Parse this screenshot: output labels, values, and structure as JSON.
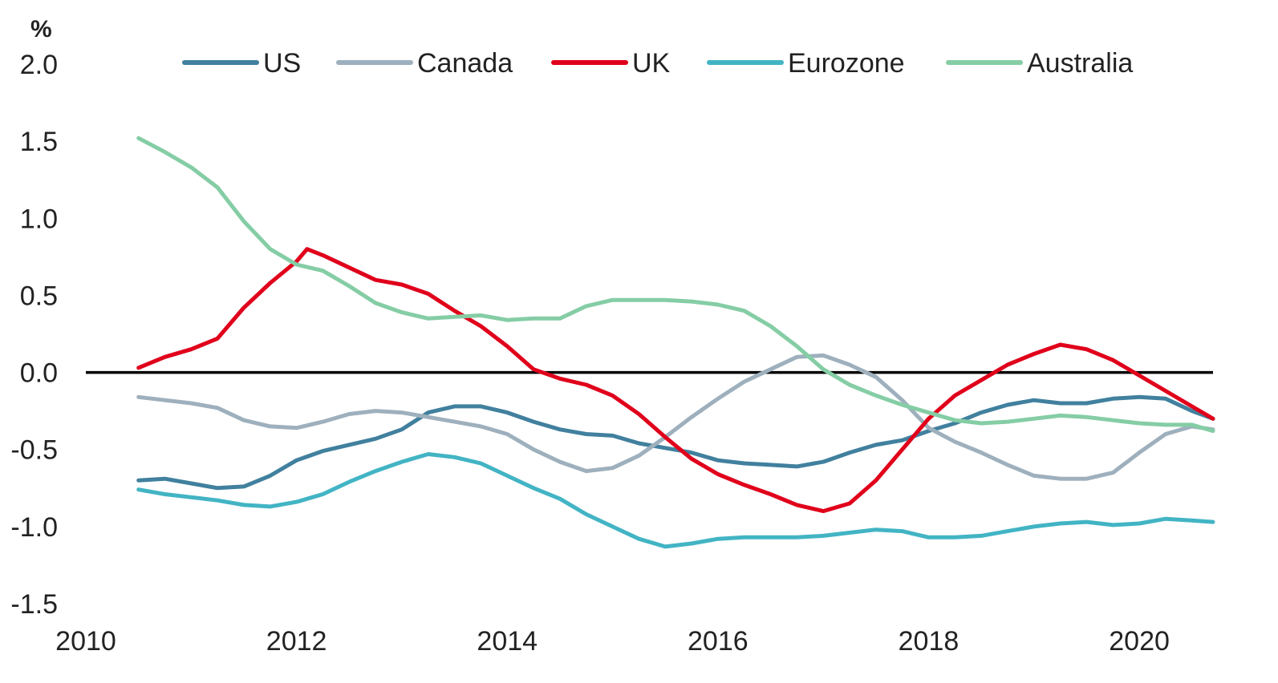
{
  "chart_data": {
    "type": "line",
    "ylabel": "%",
    "ylim": [
      -1.5,
      2.0
    ],
    "xlim": [
      2010,
      2020.7
    ],
    "y_ticks": [
      "2.0",
      "1.5",
      "1.0",
      "0.5",
      "0.0",
      "-0.5",
      "-1.0",
      "-1.5"
    ],
    "y_tick_values": [
      2.0,
      1.5,
      1.0,
      0.5,
      0.0,
      -0.5,
      -1.0,
      -1.5
    ],
    "x_ticks": [
      "2010",
      "2012",
      "2014",
      "2016",
      "2018",
      "2020"
    ],
    "x_tick_values": [
      2010,
      2012,
      2014,
      2016,
      2018,
      2020
    ],
    "zero_line": true,
    "grid": false,
    "legend_position": "top",
    "series": [
      {
        "name": "US",
        "color": "#41809E",
        "points": [
          [
            2010.5,
            -0.7
          ],
          [
            2010.75,
            -0.69
          ],
          [
            2011.0,
            -0.72
          ],
          [
            2011.25,
            -0.75
          ],
          [
            2011.5,
            -0.74
          ],
          [
            2011.75,
            -0.67
          ],
          [
            2012.0,
            -0.57
          ],
          [
            2012.25,
            -0.51
          ],
          [
            2012.5,
            -0.47
          ],
          [
            2012.75,
            -0.43
          ],
          [
            2013.0,
            -0.37
          ],
          [
            2013.25,
            -0.26
          ],
          [
            2013.5,
            -0.22
          ],
          [
            2013.75,
            -0.22
          ],
          [
            2014.0,
            -0.26
          ],
          [
            2014.25,
            -0.32
          ],
          [
            2014.5,
            -0.37
          ],
          [
            2014.75,
            -0.4
          ],
          [
            2015.0,
            -0.41
          ],
          [
            2015.25,
            -0.46
          ],
          [
            2015.5,
            -0.49
          ],
          [
            2015.75,
            -0.52
          ],
          [
            2016.0,
            -0.57
          ],
          [
            2016.25,
            -0.59
          ],
          [
            2016.5,
            -0.6
          ],
          [
            2016.75,
            -0.61
          ],
          [
            2017.0,
            -0.58
          ],
          [
            2017.25,
            -0.52
          ],
          [
            2017.5,
            -0.47
          ],
          [
            2017.75,
            -0.44
          ],
          [
            2018.0,
            -0.38
          ],
          [
            2018.25,
            -0.33
          ],
          [
            2018.5,
            -0.26
          ],
          [
            2018.75,
            -0.21
          ],
          [
            2019.0,
            -0.18
          ],
          [
            2019.25,
            -0.2
          ],
          [
            2019.5,
            -0.2
          ],
          [
            2019.75,
            -0.17
          ],
          [
            2020.0,
            -0.16
          ],
          [
            2020.25,
            -0.17
          ],
          [
            2020.5,
            -0.25
          ],
          [
            2020.7,
            -0.3
          ]
        ]
      },
      {
        "name": "Canada",
        "color": "#9EB0BD",
        "points": [
          [
            2010.5,
            -0.16
          ],
          [
            2010.75,
            -0.18
          ],
          [
            2011.0,
            -0.2
          ],
          [
            2011.25,
            -0.23
          ],
          [
            2011.5,
            -0.31
          ],
          [
            2011.75,
            -0.35
          ],
          [
            2012.0,
            -0.36
          ],
          [
            2012.25,
            -0.32
          ],
          [
            2012.5,
            -0.27
          ],
          [
            2012.75,
            -0.25
          ],
          [
            2013.0,
            -0.26
          ],
          [
            2013.25,
            -0.29
          ],
          [
            2013.5,
            -0.32
          ],
          [
            2013.75,
            -0.35
          ],
          [
            2014.0,
            -0.4
          ],
          [
            2014.25,
            -0.5
          ],
          [
            2014.5,
            -0.58
          ],
          [
            2014.75,
            -0.64
          ],
          [
            2015.0,
            -0.62
          ],
          [
            2015.25,
            -0.54
          ],
          [
            2015.5,
            -0.42
          ],
          [
            2015.75,
            -0.29
          ],
          [
            2016.0,
            -0.17
          ],
          [
            2016.25,
            -0.06
          ],
          [
            2016.5,
            0.02
          ],
          [
            2016.75,
            0.1
          ],
          [
            2017.0,
            0.11
          ],
          [
            2017.25,
            0.05
          ],
          [
            2017.5,
            -0.03
          ],
          [
            2017.75,
            -0.18
          ],
          [
            2018.0,
            -0.36
          ],
          [
            2018.25,
            -0.45
          ],
          [
            2018.5,
            -0.52
          ],
          [
            2018.75,
            -0.6
          ],
          [
            2019.0,
            -0.67
          ],
          [
            2019.25,
            -0.69
          ],
          [
            2019.5,
            -0.69
          ],
          [
            2019.75,
            -0.65
          ],
          [
            2020.0,
            -0.52
          ],
          [
            2020.25,
            -0.4
          ],
          [
            2020.5,
            -0.35
          ],
          [
            2020.7,
            -0.37
          ]
        ]
      },
      {
        "name": "UK",
        "color": "#E0001B",
        "points": [
          [
            2010.5,
            0.03
          ],
          [
            2010.75,
            0.1
          ],
          [
            2011.0,
            0.15
          ],
          [
            2011.25,
            0.22
          ],
          [
            2011.5,
            0.42
          ],
          [
            2011.75,
            0.58
          ],
          [
            2012.0,
            0.72
          ],
          [
            2012.1,
            0.8
          ],
          [
            2012.25,
            0.76
          ],
          [
            2012.5,
            0.68
          ],
          [
            2012.75,
            0.6
          ],
          [
            2013.0,
            0.57
          ],
          [
            2013.25,
            0.51
          ],
          [
            2013.5,
            0.4
          ],
          [
            2013.75,
            0.3
          ],
          [
            2014.0,
            0.17
          ],
          [
            2014.25,
            0.02
          ],
          [
            2014.5,
            -0.04
          ],
          [
            2014.75,
            -0.08
          ],
          [
            2015.0,
            -0.15
          ],
          [
            2015.25,
            -0.27
          ],
          [
            2015.5,
            -0.42
          ],
          [
            2015.75,
            -0.56
          ],
          [
            2016.0,
            -0.66
          ],
          [
            2016.25,
            -0.73
          ],
          [
            2016.5,
            -0.79
          ],
          [
            2016.75,
            -0.86
          ],
          [
            2017.0,
            -0.9
          ],
          [
            2017.25,
            -0.85
          ],
          [
            2017.5,
            -0.7
          ],
          [
            2017.75,
            -0.5
          ],
          [
            2018.0,
            -0.3
          ],
          [
            2018.25,
            -0.15
          ],
          [
            2018.5,
            -0.05
          ],
          [
            2018.75,
            0.05
          ],
          [
            2019.0,
            0.12
          ],
          [
            2019.25,
            0.18
          ],
          [
            2019.5,
            0.15
          ],
          [
            2019.75,
            0.08
          ],
          [
            2020.0,
            -0.02
          ],
          [
            2020.25,
            -0.12
          ],
          [
            2020.5,
            -0.22
          ],
          [
            2020.7,
            -0.3
          ]
        ]
      },
      {
        "name": "Eurozone",
        "color": "#42B4C4",
        "points": [
          [
            2010.5,
            -0.76
          ],
          [
            2010.75,
            -0.79
          ],
          [
            2011.0,
            -0.81
          ],
          [
            2011.25,
            -0.83
          ],
          [
            2011.5,
            -0.86
          ],
          [
            2011.75,
            -0.87
          ],
          [
            2012.0,
            -0.84
          ],
          [
            2012.25,
            -0.79
          ],
          [
            2012.5,
            -0.71
          ],
          [
            2012.75,
            -0.64
          ],
          [
            2013.0,
            -0.58
          ],
          [
            2013.25,
            -0.53
          ],
          [
            2013.5,
            -0.55
          ],
          [
            2013.75,
            -0.59
          ],
          [
            2014.0,
            -0.67
          ],
          [
            2014.25,
            -0.75
          ],
          [
            2014.5,
            -0.82
          ],
          [
            2014.75,
            -0.92
          ],
          [
            2015.0,
            -1.0
          ],
          [
            2015.25,
            -1.08
          ],
          [
            2015.5,
            -1.13
          ],
          [
            2015.75,
            -1.11
          ],
          [
            2016.0,
            -1.08
          ],
          [
            2016.25,
            -1.07
          ],
          [
            2016.5,
            -1.07
          ],
          [
            2016.75,
            -1.07
          ],
          [
            2017.0,
            -1.06
          ],
          [
            2017.25,
            -1.04
          ],
          [
            2017.5,
            -1.02
          ],
          [
            2017.75,
            -1.03
          ],
          [
            2018.0,
            -1.07
          ],
          [
            2018.25,
            -1.07
          ],
          [
            2018.5,
            -1.06
          ],
          [
            2018.75,
            -1.03
          ],
          [
            2019.0,
            -1.0
          ],
          [
            2019.25,
            -0.98
          ],
          [
            2019.5,
            -0.97
          ],
          [
            2019.75,
            -0.99
          ],
          [
            2020.0,
            -0.98
          ],
          [
            2020.25,
            -0.95
          ],
          [
            2020.5,
            -0.96
          ],
          [
            2020.7,
            -0.97
          ]
        ]
      },
      {
        "name": "Australia",
        "color": "#85CDA5",
        "points": [
          [
            2010.5,
            1.52
          ],
          [
            2010.75,
            1.43
          ],
          [
            2011.0,
            1.33
          ],
          [
            2011.25,
            1.2
          ],
          [
            2011.5,
            0.98
          ],
          [
            2011.75,
            0.8
          ],
          [
            2012.0,
            0.7
          ],
          [
            2012.25,
            0.66
          ],
          [
            2012.5,
            0.56
          ],
          [
            2012.75,
            0.45
          ],
          [
            2013.0,
            0.39
          ],
          [
            2013.25,
            0.35
          ],
          [
            2013.5,
            0.36
          ],
          [
            2013.75,
            0.37
          ],
          [
            2014.0,
            0.34
          ],
          [
            2014.25,
            0.35
          ],
          [
            2014.5,
            0.35
          ],
          [
            2014.75,
            0.43
          ],
          [
            2015.0,
            0.47
          ],
          [
            2015.25,
            0.47
          ],
          [
            2015.5,
            0.47
          ],
          [
            2015.75,
            0.46
          ],
          [
            2016.0,
            0.44
          ],
          [
            2016.25,
            0.4
          ],
          [
            2016.5,
            0.3
          ],
          [
            2016.75,
            0.17
          ],
          [
            2017.0,
            0.02
          ],
          [
            2017.25,
            -0.08
          ],
          [
            2017.5,
            -0.15
          ],
          [
            2017.75,
            -0.21
          ],
          [
            2018.0,
            -0.26
          ],
          [
            2018.25,
            -0.31
          ],
          [
            2018.5,
            -0.33
          ],
          [
            2018.75,
            -0.32
          ],
          [
            2019.0,
            -0.3
          ],
          [
            2019.25,
            -0.28
          ],
          [
            2019.5,
            -0.29
          ],
          [
            2019.75,
            -0.31
          ],
          [
            2020.0,
            -0.33
          ],
          [
            2020.25,
            -0.34
          ],
          [
            2020.5,
            -0.34
          ],
          [
            2020.7,
            -0.38
          ]
        ]
      }
    ]
  }
}
